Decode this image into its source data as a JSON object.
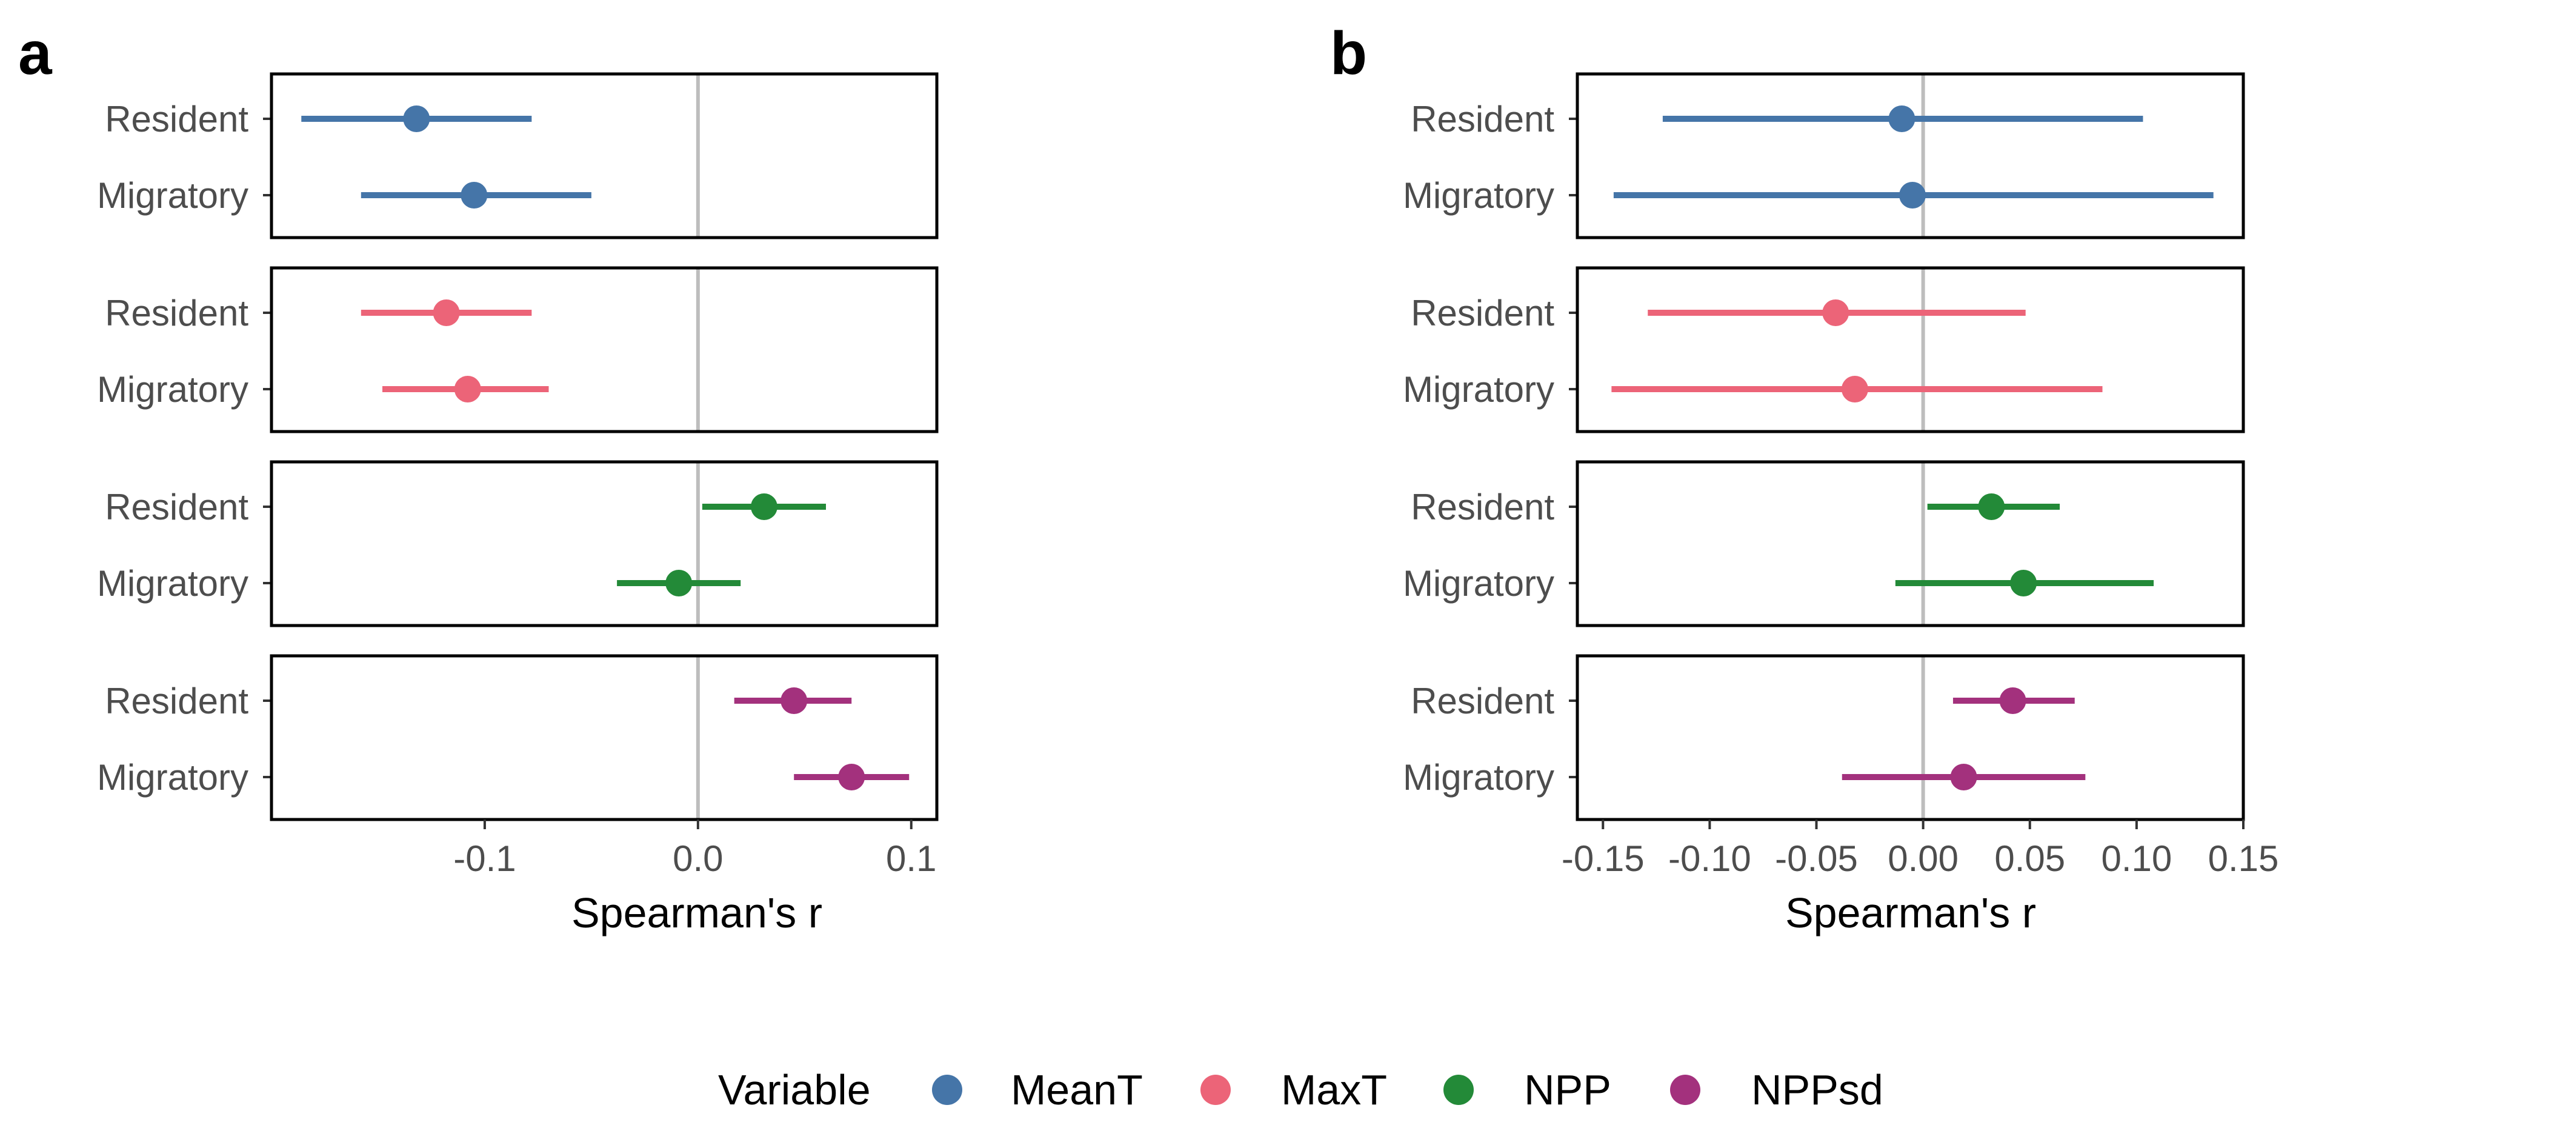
{
  "chart_data": [
    {
      "type": "forest",
      "panel_label": "a",
      "xlabel": "Spearman's r",
      "xlim": [
        -0.2,
        0.112
      ],
      "x_ticks": [
        -0.1,
        0.0,
        0.1
      ],
      "x_tick_labels": [
        "-0.1",
        "0.0",
        "0.1"
      ],
      "reference_line": 0,
      "grid": false,
      "facets": [
        {
          "variable": "MeanT",
          "rows": [
            {
              "label": "Resident",
              "estimate": -0.132,
              "ci_low": -0.186,
              "ci_high": -0.078
            },
            {
              "label": "Migratory",
              "estimate": -0.105,
              "ci_low": -0.158,
              "ci_high": -0.05
            }
          ]
        },
        {
          "variable": "MaxT",
          "rows": [
            {
              "label": "Resident",
              "estimate": -0.118,
              "ci_low": -0.158,
              "ci_high": -0.078
            },
            {
              "label": "Migratory",
              "estimate": -0.108,
              "ci_low": -0.148,
              "ci_high": -0.07
            }
          ]
        },
        {
          "variable": "NPP",
          "rows": [
            {
              "label": "Resident",
              "estimate": 0.031,
              "ci_low": 0.002,
              "ci_high": 0.06
            },
            {
              "label": "Migratory",
              "estimate": -0.009,
              "ci_low": -0.038,
              "ci_high": 0.02
            }
          ]
        },
        {
          "variable": "NPPsd",
          "rows": [
            {
              "label": "Resident",
              "estimate": 0.045,
              "ci_low": 0.017,
              "ci_high": 0.072
            },
            {
              "label": "Migratory",
              "estimate": 0.072,
              "ci_low": 0.045,
              "ci_high": 0.099
            }
          ]
        }
      ]
    },
    {
      "type": "forest",
      "panel_label": "b",
      "xlabel": "Spearman's r",
      "xlim": [
        -0.162,
        0.15
      ],
      "x_ticks": [
        -0.15,
        -0.1,
        -0.05,
        0.0,
        0.05,
        0.1,
        0.15
      ],
      "x_tick_labels": [
        "-0.15",
        "-0.10",
        "-0.05",
        "0.00",
        "0.05",
        "0.10",
        "0.15"
      ],
      "reference_line": 0,
      "grid": false,
      "facets": [
        {
          "variable": "MeanT",
          "rows": [
            {
              "label": "Resident",
              "estimate": -0.01,
              "ci_low": -0.122,
              "ci_high": 0.103
            },
            {
              "label": "Migratory",
              "estimate": -0.005,
              "ci_low": -0.145,
              "ci_high": 0.136
            }
          ]
        },
        {
          "variable": "MaxT",
          "rows": [
            {
              "label": "Resident",
              "estimate": -0.041,
              "ci_low": -0.129,
              "ci_high": 0.048
            },
            {
              "label": "Migratory",
              "estimate": -0.032,
              "ci_low": -0.146,
              "ci_high": 0.084
            }
          ]
        },
        {
          "variable": "NPP",
          "rows": [
            {
              "label": "Resident",
              "estimate": 0.032,
              "ci_low": 0.002,
              "ci_high": 0.064
            },
            {
              "label": "Migratory",
              "estimate": 0.047,
              "ci_low": -0.013,
              "ci_high": 0.108
            }
          ]
        },
        {
          "variable": "NPPsd",
          "rows": [
            {
              "label": "Resident",
              "estimate": 0.042,
              "ci_low": 0.014,
              "ci_high": 0.071
            },
            {
              "label": "Migratory",
              "estimate": 0.019,
              "ci_low": -0.038,
              "ci_high": 0.076
            }
          ]
        }
      ]
    }
  ],
  "legend": {
    "title": "Variable",
    "position": "bottom",
    "items": [
      {
        "label": "MeanT",
        "color": "#4575a8"
      },
      {
        "label": "MaxT",
        "color": "#ec6478"
      },
      {
        "label": "NPP",
        "color": "#238a38"
      },
      {
        "label": "NPPsd",
        "color": "#a3317d"
      }
    ]
  },
  "style": {
    "reference_line_color": "#bdbdbd",
    "axis_text_color": "#4d4d4d"
  }
}
